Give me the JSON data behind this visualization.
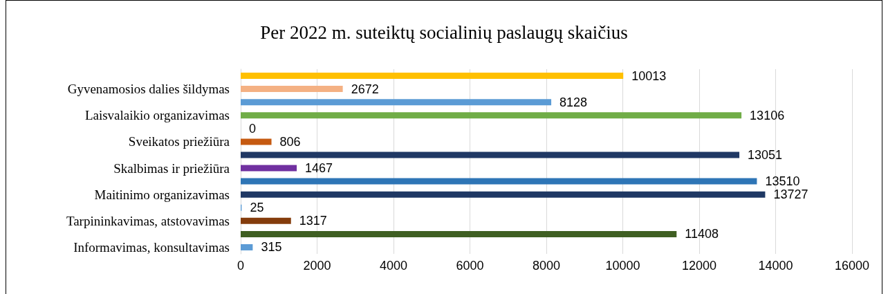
{
  "chart_data": {
    "type": "bar",
    "orientation": "horizontal",
    "title": "Per 2022 m. suteiktų socialinių paslaugų skaičius",
    "categories": [
      null,
      "Gyvenamosios dalies šildymas",
      null,
      "Laisvalaikio organizavimas",
      null,
      "Sveikatos priežiūra",
      null,
      "Skalbimas ir priežiūra",
      null,
      "Maitinimo organizavimas",
      null,
      "Tarpininkavimas, atstovavimas",
      null,
      "Informavimas, konsultavimas"
    ],
    "values": [
      10013,
      2672,
      8128,
      13106,
      0,
      806,
      13051,
      1467,
      13510,
      13727,
      25,
      1317,
      11408,
      315
    ],
    "colors": [
      "#ffc000",
      "#f4b183",
      "#5b9bd5",
      "#70ad47",
      "#ed7d31",
      "#c55a11",
      "#203864",
      "#7030a0",
      "#2e75b6",
      "#1f3864",
      "#5b9bd5",
      "#843c0c",
      "#3f5f22",
      "#5b9bd5"
    ],
    "xlim": [
      0,
      16000
    ],
    "xticks": [
      0,
      2000,
      4000,
      6000,
      8000,
      10000,
      12000,
      14000,
      16000
    ],
    "grid": "x",
    "data_labels": true
  }
}
